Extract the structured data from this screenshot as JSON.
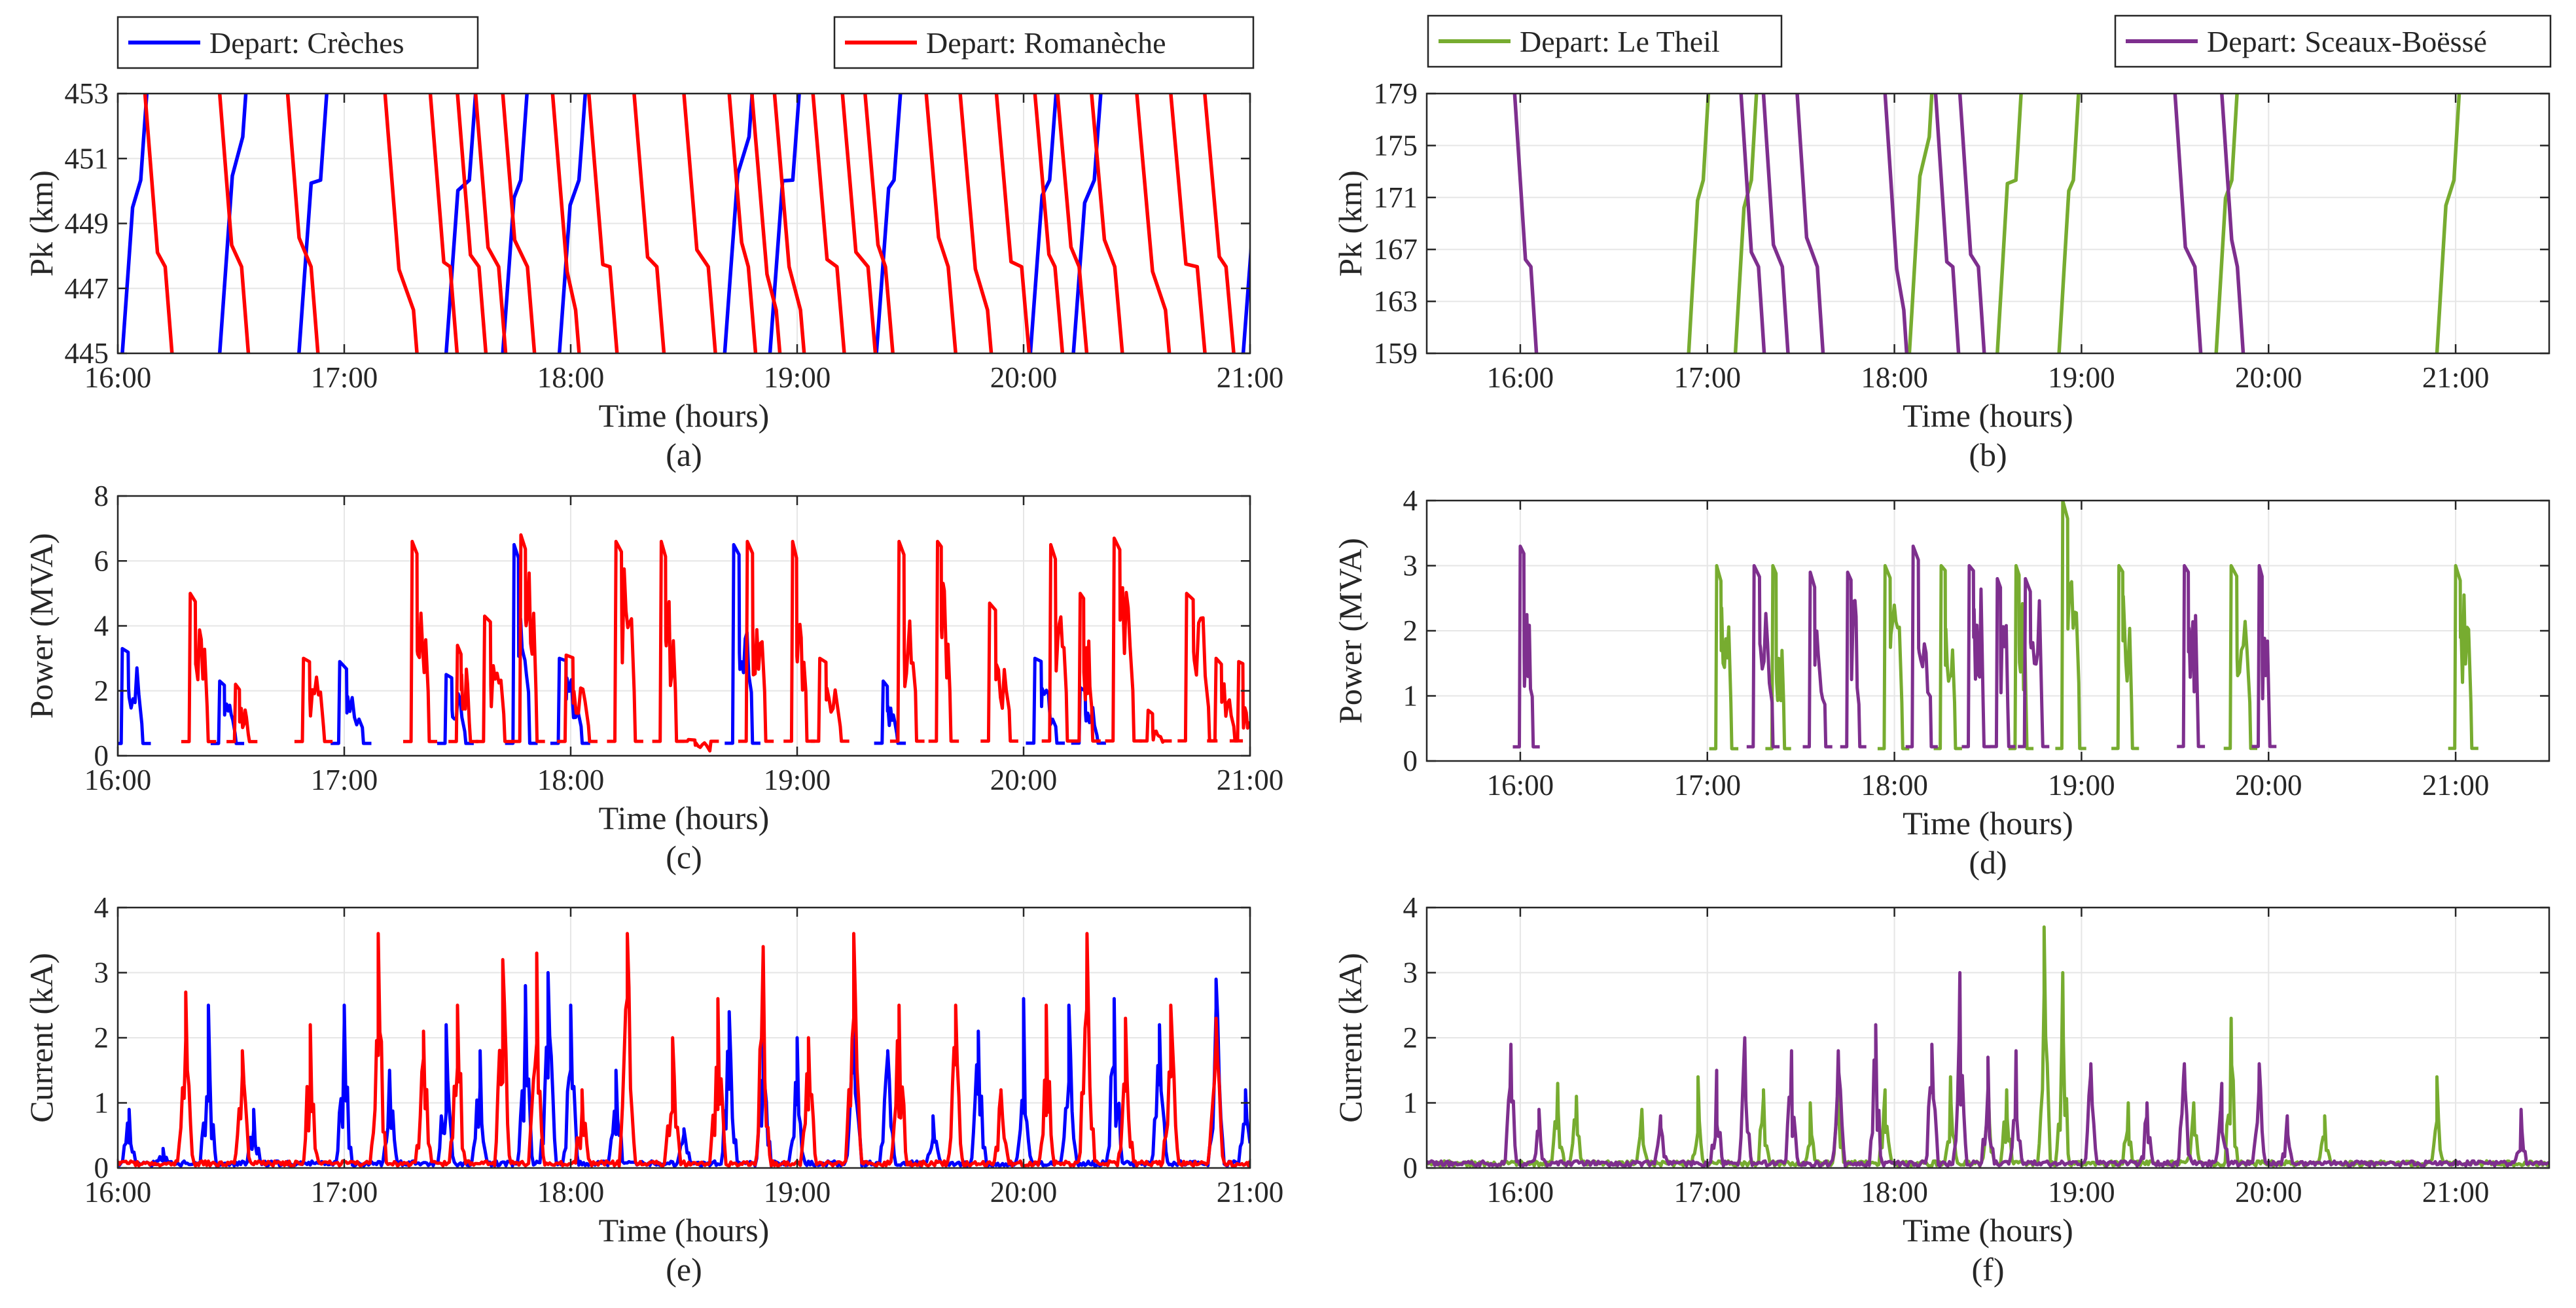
{
  "figure": {
    "x_axis_label": "Time (hours)",
    "x_tick_labels": [
      "16:00",
      "17:00",
      "18:00",
      "19:00",
      "20:00",
      "21:00"
    ]
  },
  "colors": {
    "creches": "#0000ff",
    "romaneche": "#ff0000",
    "le_theil": "#77ac30",
    "sceaux": "#7e2f8e",
    "grid": "#e6e6e6",
    "axis": "#262626"
  },
  "chart_data": [
    {
      "id": "a",
      "type": "line",
      "panel_label": "(a)",
      "xlabel": "Time (hours)",
      "ylabel": "Pk (km)",
      "xlim": [
        16.0,
        21.0
      ],
      "ylim": [
        445,
        453
      ],
      "yticks": [
        445,
        447,
        449,
        451,
        453
      ],
      "xticks": [
        16,
        17,
        18,
        19,
        20,
        21
      ],
      "legend_position": "top",
      "series": [
        {
          "name": "Depart: Crèches",
          "color": "#0000ff",
          "style": "up",
          "starts": [
            16.02,
            16.45,
            16.8,
            17.45,
            17.7,
            17.95,
            18.68,
            18.88,
            19.35,
            20.03,
            20.22,
            20.97
          ]
        },
        {
          "name": "Depart: Romanèche",
          "color": "#ff0000",
          "style": "down",
          "starts": [
            16.12,
            16.45,
            16.75,
            17.18,
            17.38,
            17.5,
            17.58,
            17.7,
            17.92,
            18.08,
            18.28,
            18.5,
            18.7,
            18.8,
            18.9,
            19.07,
            19.2,
            19.3,
            19.57,
            19.72,
            19.88,
            20.05,
            20.15,
            20.3,
            20.5,
            20.65,
            20.8
          ]
        }
      ]
    },
    {
      "id": "b",
      "type": "line",
      "panel_label": "(b)",
      "xlabel": "Time (hours)",
      "ylabel": "Pk (km)",
      "xlim": [
        15.5,
        21.5
      ],
      "ylim": [
        159,
        179
      ],
      "yticks": [
        159,
        163,
        167,
        171,
        175,
        179
      ],
      "xticks": [
        16,
        17,
        18,
        19,
        20,
        21
      ],
      "legend_position": "top",
      "series": [
        {
          "name": "Depart: Le Theil",
          "color": "#77ac30",
          "style": "up",
          "starts": [
            16.9,
            17.15,
            18.08,
            18.55,
            18.88,
            19.72,
            20.9
          ]
        },
        {
          "name": "Depart: Sceaux-Boëssé",
          "color": "#7e2f8e",
          "style": "down",
          "starts": [
            15.97,
            17.18,
            17.3,
            17.48,
            17.95,
            18.22,
            18.35,
            19.5,
            19.75
          ]
        }
      ]
    },
    {
      "id": "c",
      "type": "line",
      "panel_label": "(c)",
      "xlabel": "Time (hours)",
      "ylabel": "Power (MVA)",
      "xlim": [
        16.0,
        21.0
      ],
      "ylim": [
        0,
        8
      ],
      "yticks": [
        0,
        2,
        4,
        6,
        8
      ],
      "xticks": [
        16,
        17,
        18,
        19,
        20,
        21
      ],
      "series": [
        {
          "name": "Depart: Crèches",
          "color": "#0000ff",
          "events": [
            [
              16.02,
              3.3
            ],
            [
              16.45,
              2.3
            ],
            [
              16.98,
              2.9
            ],
            [
              17.45,
              2.5
            ],
            [
              17.75,
              6.5
            ],
            [
              17.95,
              3.0
            ],
            [
              18.72,
              6.5
            ],
            [
              19.38,
              2.3
            ],
            [
              20.05,
              3.0
            ],
            [
              20.25,
              2.1
            ]
          ]
        },
        {
          "name": "Depart: Romanèche",
          "color": "#ff0000",
          "events": [
            [
              16.32,
              5.0
            ],
            [
              16.52,
              2.2
            ],
            [
              16.82,
              3.0
            ],
            [
              17.3,
              6.6
            ],
            [
              17.5,
              3.4
            ],
            [
              17.62,
              4.3
            ],
            [
              17.78,
              6.8
            ],
            [
              17.98,
              3.1
            ],
            [
              18.2,
              6.6
            ],
            [
              18.4,
              6.6
            ],
            [
              18.52,
              0.5
            ],
            [
              18.78,
              6.6
            ],
            [
              18.98,
              6.6
            ],
            [
              19.1,
              3.0
            ],
            [
              19.45,
              6.6
            ],
            [
              19.62,
              6.6
            ],
            [
              19.85,
              4.7
            ],
            [
              20.12,
              6.5
            ],
            [
              20.25,
              5.0
            ],
            [
              20.4,
              6.7
            ],
            [
              20.55,
              1.4
            ],
            [
              20.72,
              5.0
            ],
            [
              20.85,
              3.0
            ],
            [
              20.95,
              2.9
            ]
          ]
        }
      ]
    },
    {
      "id": "d",
      "type": "line",
      "panel_label": "(d)",
      "xlabel": "Time (hours)",
      "ylabel": "Power (MVA)",
      "xlim": [
        15.5,
        21.5
      ],
      "ylim": [
        0,
        4
      ],
      "yticks": [
        0,
        1,
        2,
        3,
        4
      ],
      "xticks": [
        16,
        17,
        18,
        19,
        20,
        21
      ],
      "series": [
        {
          "name": "Depart: Le Theil",
          "color": "#77ac30",
          "events": [
            [
              17.05,
              3.0
            ],
            [
              17.35,
              3.0
            ],
            [
              17.95,
              3.0
            ],
            [
              18.25,
              3.0
            ],
            [
              18.65,
              3.0
            ],
            [
              18.9,
              4.0
            ],
            [
              19.2,
              3.0
            ],
            [
              19.8,
              3.0
            ],
            [
              21.0,
              3.0
            ]
          ]
        },
        {
          "name": "Depart: Sceaux-Boëssé",
          "color": "#7e2f8e",
          "events": [
            [
              16.0,
              3.3
            ],
            [
              17.25,
              3.0
            ],
            [
              17.55,
              2.9
            ],
            [
              17.75,
              2.9
            ],
            [
              18.1,
              3.3
            ],
            [
              18.4,
              3.0
            ],
            [
              18.55,
              2.8
            ],
            [
              18.7,
              2.8
            ],
            [
              19.55,
              3.0
            ],
            [
              19.95,
              3.0
            ]
          ]
        }
      ]
    },
    {
      "id": "e",
      "type": "line",
      "panel_label": "(e)",
      "xlabel": "Time (hours)",
      "ylabel": "Current (kA)",
      "xlim": [
        16.0,
        21.0
      ],
      "ylim": [
        0,
        4
      ],
      "yticks": [
        0,
        1,
        2,
        3,
        4
      ],
      "xticks": [
        16,
        17,
        18,
        19,
        20,
        21
      ],
      "series": [
        {
          "name": "Depart: Crèches",
          "color": "#0000ff",
          "peaks": [
            [
              16.05,
              0.9
            ],
            [
              16.2,
              0.3
            ],
            [
              16.4,
              2.5
            ],
            [
              16.6,
              0.9
            ],
            [
              17.0,
              2.5
            ],
            [
              17.2,
              1.5
            ],
            [
              17.45,
              2.2
            ],
            [
              17.6,
              1.8
            ],
            [
              17.8,
              2.8
            ],
            [
              17.9,
              3.0
            ],
            [
              18.0,
              2.5
            ],
            [
              18.2,
              1.5
            ],
            [
              18.5,
              0.6
            ],
            [
              18.7,
              2.4
            ],
            [
              18.85,
              2.5
            ],
            [
              19.0,
              2.0
            ],
            [
              19.25,
              2.5
            ],
            [
              19.4,
              1.8
            ],
            [
              19.6,
              0.8
            ],
            [
              19.8,
              2.1
            ],
            [
              20.0,
              2.6
            ],
            [
              20.2,
              2.5
            ],
            [
              20.4,
              2.6
            ],
            [
              20.6,
              2.2
            ],
            [
              20.85,
              2.9
            ],
            [
              20.98,
              1.2
            ]
          ]
        },
        {
          "name": "Depart: Romanèche",
          "color": "#ff0000",
          "peaks": [
            [
              16.3,
              2.7
            ],
            [
              16.55,
              1.8
            ],
            [
              16.85,
              2.2
            ],
            [
              17.15,
              3.6
            ],
            [
              17.35,
              2.1
            ],
            [
              17.5,
              2.5
            ],
            [
              17.7,
              3.2
            ],
            [
              17.85,
              3.3
            ],
            [
              18.05,
              1.2
            ],
            [
              18.25,
              3.6
            ],
            [
              18.45,
              2.0
            ],
            [
              18.65,
              2.6
            ],
            [
              18.85,
              3.4
            ],
            [
              19.05,
              2.0
            ],
            [
              19.25,
              3.6
            ],
            [
              19.45,
              2.5
            ],
            [
              19.7,
              2.5
            ],
            [
              19.9,
              1.2
            ],
            [
              20.1,
              2.5
            ],
            [
              20.28,
              3.6
            ],
            [
              20.45,
              2.3
            ],
            [
              20.65,
              2.5
            ],
            [
              20.85,
              2.3
            ]
          ]
        }
      ]
    },
    {
      "id": "f",
      "type": "line",
      "panel_label": "(f)",
      "xlabel": "Time (hours)",
      "ylabel": "Current (kA)",
      "xlim": [
        15.5,
        21.5
      ],
      "ylim": [
        0,
        4
      ],
      "yticks": [
        0,
        1,
        2,
        3,
        4
      ],
      "xticks": [
        16,
        17,
        18,
        19,
        20,
        21
      ],
      "series": [
        {
          "name": "Depart: Le Theil",
          "color": "#77ac30",
          "peaks": [
            [
              16.2,
              1.3
            ],
            [
              16.3,
              1.1
            ],
            [
              16.65,
              0.9
            ],
            [
              16.95,
              1.4
            ],
            [
              17.3,
              1.2
            ],
            [
              17.55,
              1.0
            ],
            [
              17.7,
              1.5
            ],
            [
              17.95,
              1.2
            ],
            [
              18.3,
              1.4
            ],
            [
              18.5,
              1.4
            ],
            [
              18.6,
              1.2
            ],
            [
              18.8,
              3.7
            ],
            [
              18.9,
              3.0
            ],
            [
              19.25,
              1.0
            ],
            [
              19.6,
              1.0
            ],
            [
              19.8,
              2.3
            ],
            [
              20.3,
              0.8
            ],
            [
              20.9,
              1.4
            ]
          ]
        },
        {
          "name": "Depart: Sceaux-Boëssé",
          "color": "#7e2f8e",
          "peaks": [
            [
              15.95,
              1.9
            ],
            [
              16.1,
              0.9
            ],
            [
              16.75,
              0.8
            ],
            [
              17.05,
              1.5
            ],
            [
              17.2,
              2.0
            ],
            [
              17.45,
              1.8
            ],
            [
              17.7,
              1.8
            ],
            [
              17.9,
              2.2
            ],
            [
              18.2,
              1.9
            ],
            [
              18.35,
              3.0
            ],
            [
              18.5,
              1.7
            ],
            [
              18.65,
              1.8
            ],
            [
              19.05,
              1.6
            ],
            [
              19.35,
              1.0
            ],
            [
              19.55,
              1.6
            ],
            [
              19.75,
              1.3
            ],
            [
              19.95,
              1.6
            ],
            [
              20.1,
              0.8
            ],
            [
              21.35,
              0.9
            ]
          ]
        }
      ]
    }
  ]
}
